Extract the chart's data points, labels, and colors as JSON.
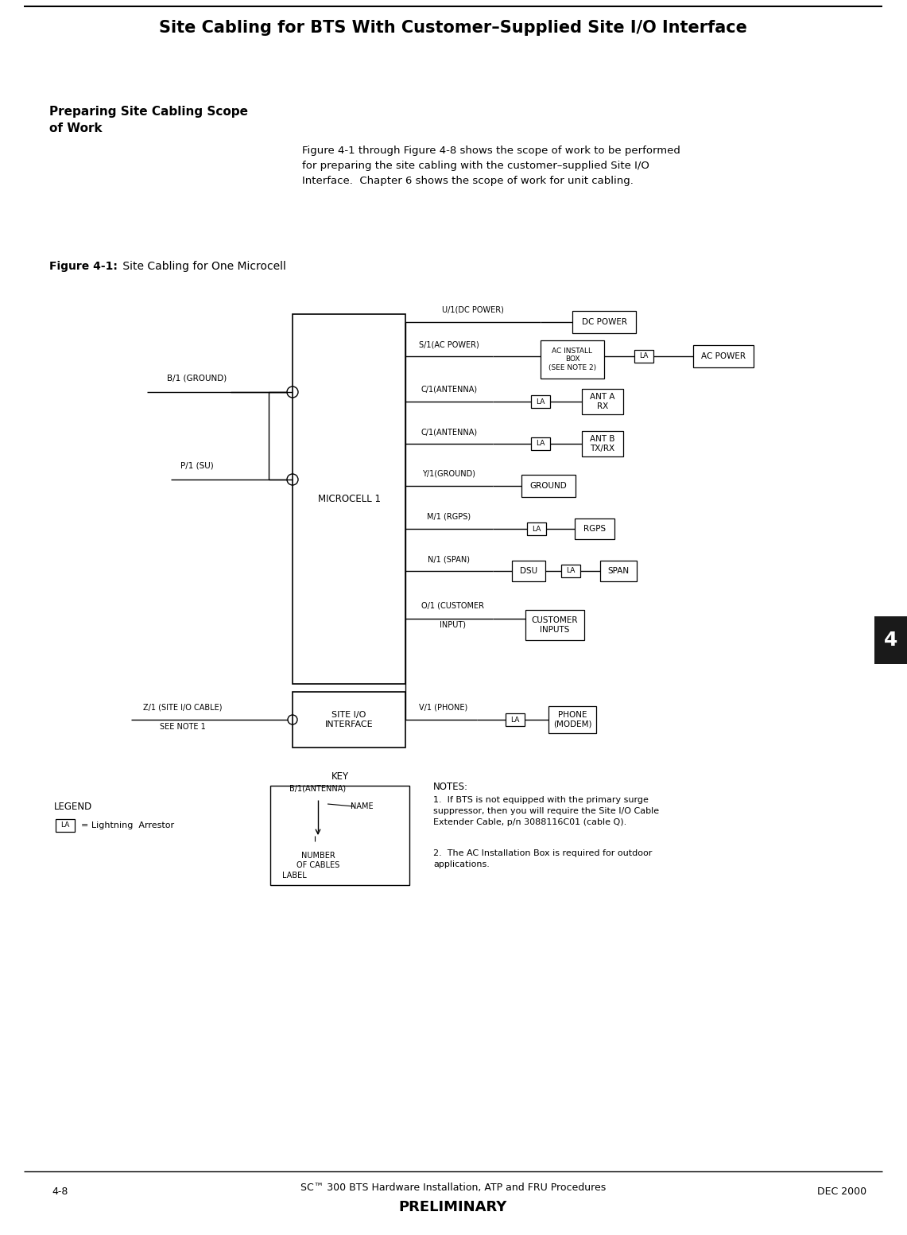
{
  "page_title": "Site Cabling for BTS With Customer–Supplied Site I/O Interface",
  "section_title": "Preparing Site Cabling Scope\nof Work",
  "body_text": "Figure 4-1 through Figure 4-8 shows the scope of work to be performed\nfor preparing the site cabling with the customer–supplied Site I/O\nInterface.  Chapter 6 shows the scope of work for unit cabling.",
  "figure_label_bold": "Figure 4-1:",
  "figure_label_normal": " Site Cabling for One Microcell",
  "footer_left": "4-8",
  "footer_center": "SC™ 300 BTS Hardware Installation, ATP and FRU Procedures",
  "footer_right": "DEC 2000",
  "footer_preliminary": "PRELIMINARY",
  "tab_label": "4",
  "bg_color": "#ffffff"
}
